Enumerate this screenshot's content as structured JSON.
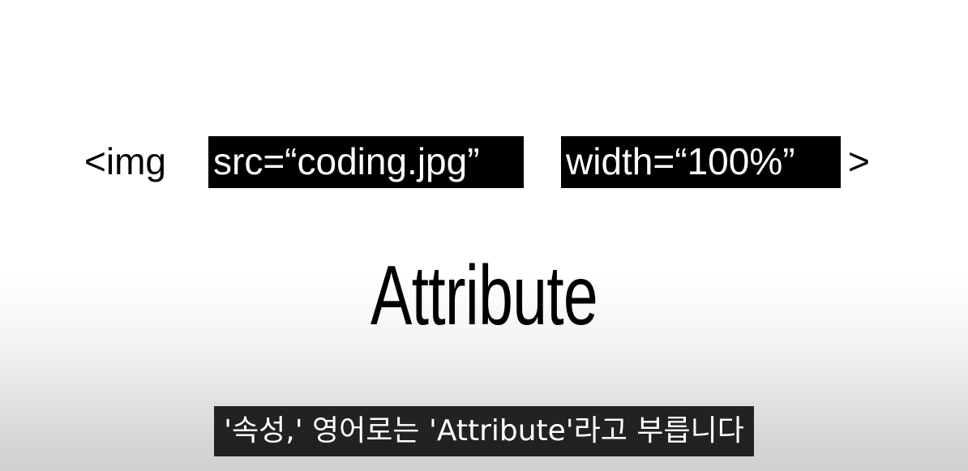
{
  "code": {
    "tag_open": "<img",
    "attr_src": "src=“coding.jpg”",
    "attr_width": "width=“100%”",
    "tag_close": ">"
  },
  "heading": "Attribute",
  "caption": "'속성,' 영어로는 'Attribute'라고 부릅니다",
  "colors": {
    "highlight_bg": "#000000",
    "highlight_text": "#ffffff",
    "caption_bg": "#080808"
  }
}
